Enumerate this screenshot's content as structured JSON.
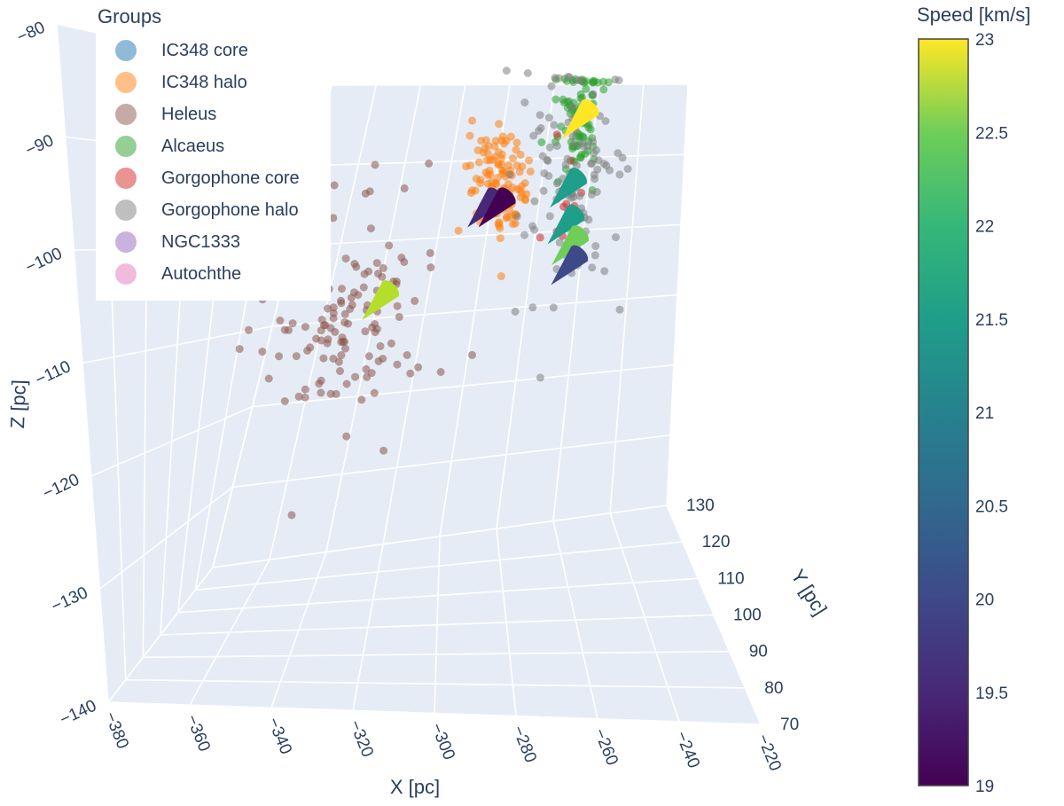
{
  "legend": {
    "title": "Groups",
    "items": [
      {
        "label": "IC348 core",
        "color": "#1f77b4"
      },
      {
        "label": "IC348 halo",
        "color": "#ff7f0e"
      },
      {
        "label": "Heleus",
        "color": "#8c564b"
      },
      {
        "label": "Alcaeus",
        "color": "#2ca02c"
      },
      {
        "label": "Gorgophone core",
        "color": "#d62728"
      },
      {
        "label": "Gorgophone halo",
        "color": "#7f7f7f"
      },
      {
        "label": "NGC1333",
        "color": "#9467bd"
      },
      {
        "label": "Autochthe",
        "color": "#e377c2"
      }
    ]
  },
  "colorbar": {
    "title": "Speed [km/s]",
    "colorscale": "viridis",
    "min": 19,
    "max": 23,
    "ticks": [
      "23",
      "22.5",
      "22",
      "21.5",
      "21",
      "20.5",
      "20",
      "19.5",
      "19"
    ]
  },
  "chart_data": {
    "type": "scatter3d",
    "axes": {
      "x": {
        "label": "X [pc]",
        "range": [
          -380,
          -220
        ],
        "ticks": [
          "−380",
          "−360",
          "−340",
          "−320",
          "−300",
          "−280",
          "−260",
          "−240",
          "−220"
        ]
      },
      "y": {
        "label": "Y [pc]",
        "range": [
          70,
          130
        ],
        "ticks": [
          "70",
          "80",
          "90",
          "100",
          "110",
          "120",
          "130"
        ]
      },
      "z": {
        "label": "Z [pc]",
        "range": [
          -140,
          -80
        ],
        "ticks": [
          "−80",
          "−90",
          "−100",
          "−110",
          "−120",
          "−130",
          "−140"
        ]
      }
    },
    "series": [
      {
        "name": "IC348 halo",
        "color": "#ff7f0e",
        "center": [
          -282,
          100,
          -92
        ],
        "spread": [
          5,
          4,
          3
        ],
        "count": 120
      },
      {
        "name": "Heleus",
        "color": "#8c564b",
        "center": [
          -328,
          98,
          -107
        ],
        "spread": [
          12,
          8,
          6
        ],
        "count": 140
      },
      {
        "name": "Alcaeus",
        "color": "#2ca02c",
        "center": [
          -262,
          118,
          -84
        ],
        "spread": [
          4,
          4,
          4
        ],
        "count": 90
      },
      {
        "name": "Gorgophone core",
        "color": "#d62728",
        "center": [
          -262,
          100,
          -96
        ],
        "spread": [
          3,
          3,
          3
        ],
        "count": 12
      },
      {
        "name": "Gorgophone halo",
        "color": "#7f7f7f",
        "center": [
          -262,
          110,
          -92
        ],
        "spread": [
          10,
          10,
          8
        ],
        "count": 110
      }
    ],
    "cones": [
      {
        "x": -316,
        "y": 95,
        "z": -104,
        "speed": 22.7
      },
      {
        "x": -285,
        "y": 97,
        "z": -94,
        "speed": 19.3
      },
      {
        "x": -282,
        "y": 98,
        "z": -94,
        "speed": 19.1
      },
      {
        "x": -262,
        "y": 118,
        "z": -84,
        "speed": 22.8
      },
      {
        "x": -262,
        "y": 107,
        "z": -92,
        "speed": 21.0
      },
      {
        "x": -262,
        "y": 104,
        "z": -96,
        "speed": 21.2
      },
      {
        "x": -260,
        "y": 100,
        "z": -98,
        "speed": 22.2
      },
      {
        "x": -260,
        "y": 98,
        "z": -100,
        "speed": 19.7
      }
    ]
  }
}
